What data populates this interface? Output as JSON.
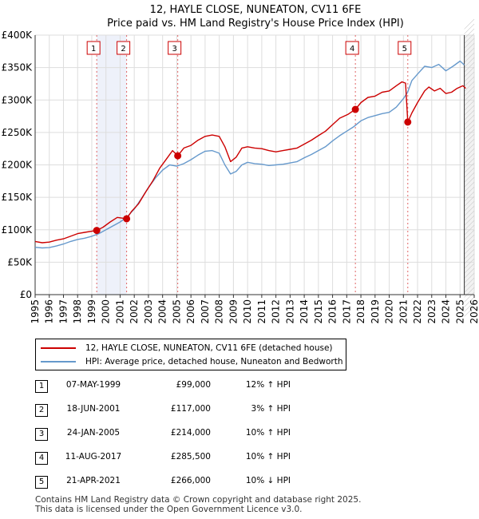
{
  "chart_data": {
    "type": "line",
    "title": "12, HAYLE CLOSE, NUNEATON, CV11 6FE",
    "subtitle": "Price paid vs. HM Land Registry's House Price Index (HPI)",
    "xlim": [
      1995,
      2026
    ],
    "ylim": [
      0,
      400000
    ],
    "x_ticks": [
      "1995",
      "1996",
      "1997",
      "1998",
      "1999",
      "2000",
      "2001",
      "2002",
      "2003",
      "2004",
      "2005",
      "2006",
      "2007",
      "2008",
      "2009",
      "2010",
      "2011",
      "2012",
      "2013",
      "2014",
      "2015",
      "2016",
      "2017",
      "2018",
      "2019",
      "2020",
      "2021",
      "2022",
      "2023",
      "2024",
      "2025",
      "2026"
    ],
    "y_ticks": [
      {
        "value": 0,
        "label": "£0"
      },
      {
        "value": 50000,
        "label": "£50K"
      },
      {
        "value": 100000,
        "label": "£100K"
      },
      {
        "value": 150000,
        "label": "£150K"
      },
      {
        "value": 200000,
        "label": "£200K"
      },
      {
        "value": 250000,
        "label": "£250K"
      },
      {
        "value": 300000,
        "label": "£300K"
      },
      {
        "value": 350000,
        "label": "£350K"
      },
      {
        "value": 400000,
        "label": "£400K"
      }
    ],
    "grid": true,
    "series": [
      {
        "name": "12, HAYLE CLOSE, NUNEATON, CV11 6FE (detached house)",
        "color": "#cc0000",
        "x": [
          1995,
          1995.5,
          1996,
          1996.5,
          1997,
          1997.5,
          1998,
          1998.5,
          1999.35,
          1999.8,
          2000.3,
          2000.8,
          2001.46,
          2001.8,
          2002.3,
          2002.8,
          2003.3,
          2003.8,
          2004.3,
          2004.7,
          2005.07,
          2005.5,
          2006,
          2006.5,
          2007,
          2007.5,
          2008,
          2008.4,
          2008.8,
          2009.2,
          2009.6,
          2010,
          2010.5,
          2011,
          2011.5,
          2012,
          2012.5,
          2013,
          2013.5,
          2014,
          2014.5,
          2015,
          2015.5,
          2016,
          2016.5,
          2017.1,
          2017.61,
          2018,
          2018.5,
          2019,
          2019.5,
          2020,
          2020.5,
          2020.9,
          2021.15,
          2021.31,
          2021.6,
          2022,
          2022.5,
          2022.8,
          2023.2,
          2023.6,
          2024,
          2024.4,
          2024.8,
          2025.2,
          2025.4
        ],
        "y": [
          82000,
          80000,
          81000,
          84000,
          86000,
          90000,
          94000,
          96000,
          99000,
          104000,
          112000,
          119000,
          117000,
          128000,
          140000,
          158000,
          175000,
          195000,
          210000,
          222000,
          214000,
          226000,
          230000,
          238000,
          244000,
          246000,
          244000,
          228000,
          205000,
          212000,
          226000,
          228000,
          226000,
          225000,
          222000,
          220000,
          222000,
          224000,
          226000,
          232000,
          238000,
          245000,
          252000,
          262000,
          272000,
          278000,
          285500,
          296000,
          304000,
          306000,
          312000,
          314000,
          322000,
          328000,
          326000,
          266000,
          280000,
          296000,
          314000,
          320000,
          314000,
          318000,
          310000,
          312000,
          318000,
          322000,
          318000
        ]
      },
      {
        "name": "HPI: Average price, detached house, Nuneaton and Bedworth",
        "color": "#6699cc",
        "x": [
          1995,
          1995.5,
          1996,
          1996.5,
          1997,
          1997.5,
          1998,
          1998.5,
          1999,
          1999.5,
          2000,
          2000.5,
          2001,
          2001.5,
          2002,
          2002.5,
          2003,
          2003.5,
          2004,
          2004.5,
          2005,
          2005.5,
          2006,
          2006.5,
          2007,
          2007.5,
          2008,
          2008.4,
          2008.8,
          2009.2,
          2009.6,
          2010,
          2010.5,
          2011,
          2011.5,
          2012,
          2012.5,
          2013,
          2013.5,
          2014,
          2014.5,
          2015,
          2015.5,
          2016,
          2016.5,
          2017,
          2017.5,
          2018,
          2018.5,
          2019,
          2019.5,
          2020,
          2020.5,
          2021,
          2021.3,
          2021.6,
          2022,
          2022.5,
          2023,
          2023.5,
          2024,
          2024.5,
          2025,
          2025.3
        ],
        "y": [
          73000,
          72000,
          72500,
          75000,
          78000,
          82000,
          85000,
          87000,
          90000,
          94000,
          100000,
          106000,
          112000,
          120000,
          132000,
          148000,
          165000,
          180000,
          192000,
          200000,
          198000,
          202000,
          208000,
          215000,
          221000,
          222000,
          218000,
          200000,
          186000,
          190000,
          200000,
          204000,
          202000,
          201000,
          199000,
          200000,
          201000,
          203000,
          205000,
          211000,
          216000,
          222000,
          228000,
          237000,
          245000,
          252000,
          259000,
          268000,
          273000,
          276000,
          279000,
          281000,
          289000,
          302000,
          312000,
          330000,
          340000,
          352000,
          350000,
          355000,
          345000,
          352000,
          360000,
          354000
        ]
      }
    ],
    "sales": [
      {
        "id": "1",
        "x": 1999.35,
        "price": 99000
      },
      {
        "id": "2",
        "x": 2001.46,
        "price": 117000
      },
      {
        "id": "3",
        "x": 2005.07,
        "price": 214000
      },
      {
        "id": "4",
        "x": 2017.61,
        "price": 285500
      },
      {
        "id": "5",
        "x": 2021.31,
        "price": 266000
      }
    ]
  },
  "legend": {
    "property_label": "12, HAYLE CLOSE, NUNEATON, CV11 6FE (detached house)",
    "hpi_label": "HPI: Average price, detached house, Nuneaton and Bedworth"
  },
  "sales_table": [
    {
      "id": "1",
      "date": "07-MAY-1999",
      "price": "£99,000",
      "hpi": "12% ↑ HPI"
    },
    {
      "id": "2",
      "date": "18-JUN-2001",
      "price": "£117,000",
      "hpi": "3% ↑ HPI"
    },
    {
      "id": "3",
      "date": "24-JAN-2005",
      "price": "£214,000",
      "hpi": "10% ↑ HPI"
    },
    {
      "id": "4",
      "date": "11-AUG-2017",
      "price": "£285,500",
      "hpi": "10% ↑ HPI"
    },
    {
      "id": "5",
      "date": "21-APR-2021",
      "price": "£266,000",
      "hpi": "10% ↓ HPI"
    }
  ],
  "footer": {
    "line1": "Contains HM Land Registry data © Crown copyright and database right 2025.",
    "line2": "This data is licensed under the Open Government Licence v3.0."
  }
}
